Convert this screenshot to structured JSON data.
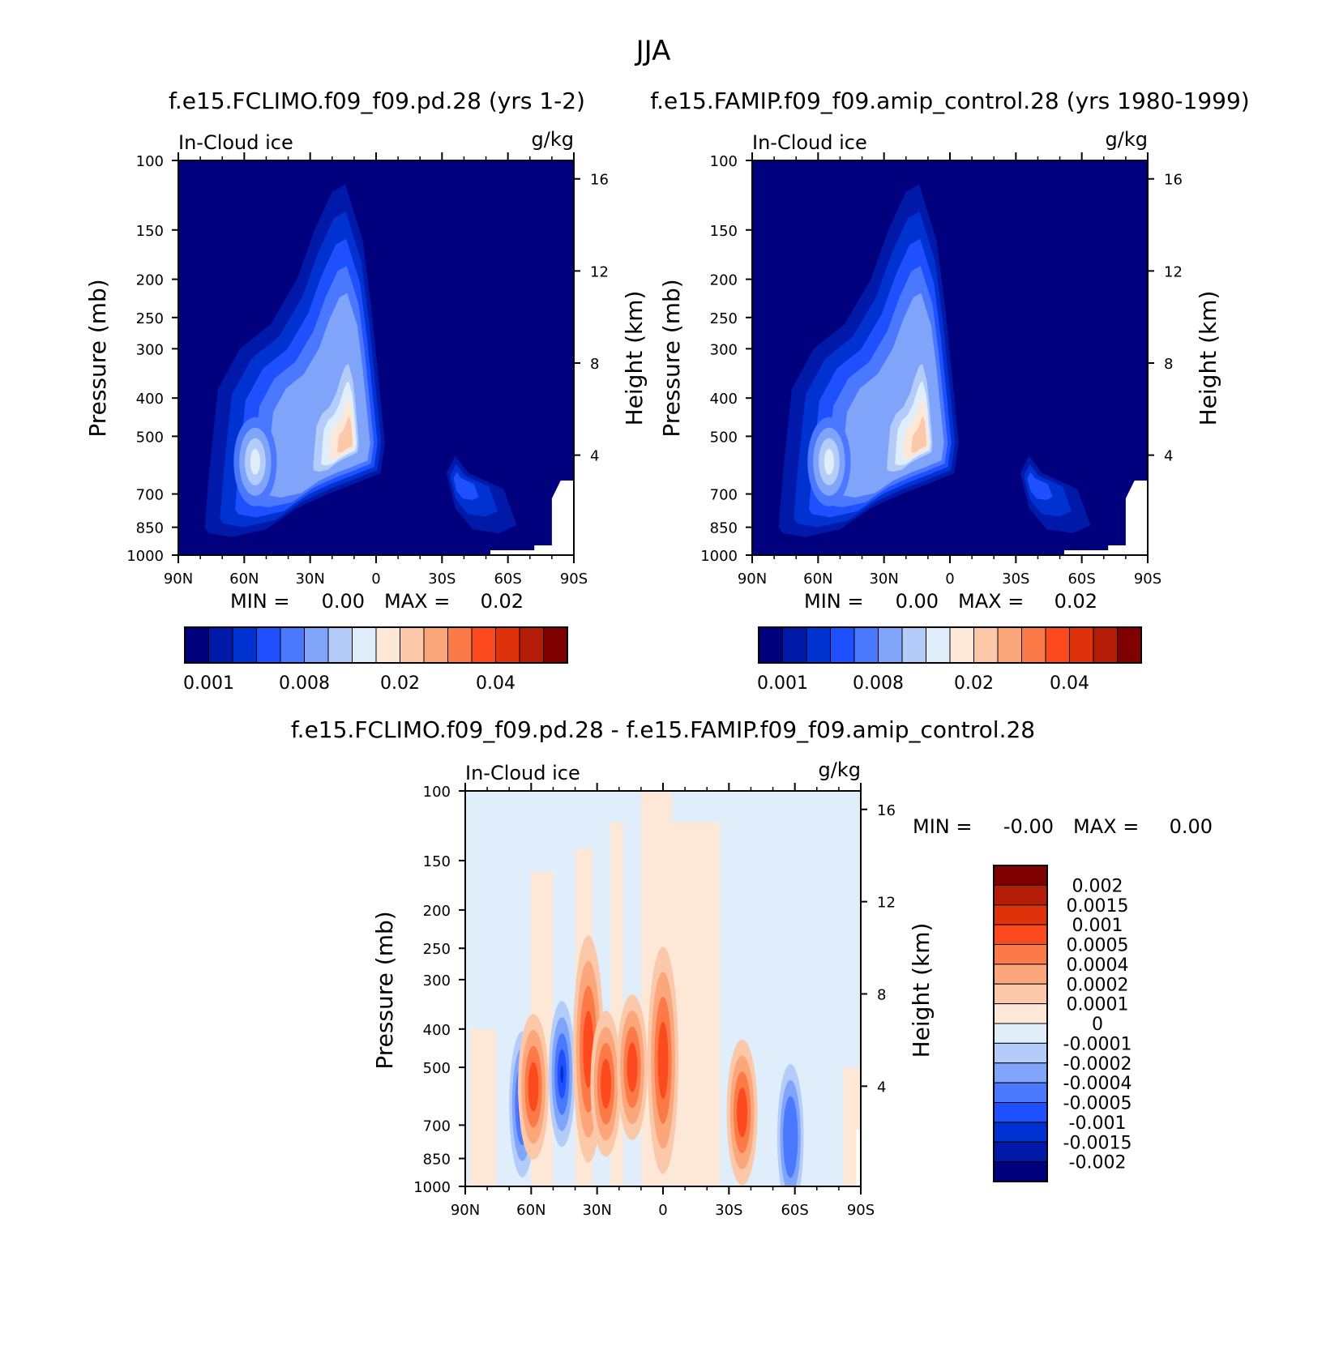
{
  "page": {
    "title": "JJA",
    "case1_title": "f.e15.FCLIMO.f09_f09.pd.28 (yrs 1-2)",
    "case2_title": "f.e15.FAMIP.f09_f09.amip_control.28 (yrs 1980-1999)",
    "diff_title": "f.e15.FCLIMO.f09_f09.pd.28 - f.e15.FAMIP.f09_f09.amip_control.28"
  },
  "chart_data": [
    {
      "type": "heatmap",
      "id": "case1",
      "field": "In-Cloud ice",
      "units": "g/kg",
      "xlabel": "",
      "ylabel": "Pressure (mb)",
      "ylabel_right": "Height (km)",
      "x_ticks": [
        "90N",
        "60N",
        "30N",
        "0",
        "30S",
        "60S",
        "90S"
      ],
      "x_range": [
        90,
        -90
      ],
      "y_ticks": [
        100,
        150,
        200,
        250,
        300,
        400,
        500,
        700,
        850,
        1000
      ],
      "y_range": [
        100,
        1000
      ],
      "height_ticks": [
        16,
        12,
        8,
        4
      ],
      "min_label": "MIN =",
      "min_value": "0.00",
      "max_label": "MAX =",
      "max_value": "0.02",
      "colorbar": {
        "orientation": "horizontal",
        "labels": [
          "0.001",
          "0.008",
          "0.02",
          "0.04"
        ],
        "colors": [
          "#00007f",
          "#0019a8",
          "#0032d2",
          "#1e50ff",
          "#4a78ff",
          "#80a4fa",
          "#b4ccfa",
          "#e0eefc",
          "#fde8d8",
          "#fcc8aa",
          "#fca67c",
          "#fc7a48",
          "#fc4a1e",
          "#e0320a",
          "#b41c08",
          "#800000"
        ]
      },
      "blobs": [
        {
          "lat": 10,
          "p": 520,
          "max_level": 9
        },
        {
          "lat": 55,
          "p": 580,
          "max_level": 7
        },
        {
          "lat": -37,
          "p": 650,
          "max_level": 3
        }
      ]
    },
    {
      "type": "heatmap",
      "id": "case2",
      "field": "In-Cloud ice",
      "units": "g/kg",
      "xlabel": "",
      "ylabel": "Pressure (mb)",
      "ylabel_right": "Height (km)",
      "x_ticks": [
        "90N",
        "60N",
        "30N",
        "0",
        "30S",
        "60S",
        "90S"
      ],
      "x_range": [
        90,
        -90
      ],
      "y_ticks": [
        100,
        150,
        200,
        250,
        300,
        400,
        500,
        700,
        850,
        1000
      ],
      "y_range": [
        100,
        1000
      ],
      "height_ticks": [
        16,
        12,
        8,
        4
      ],
      "min_label": "MIN =",
      "min_value": "0.00",
      "max_label": "MAX =",
      "max_value": "0.02",
      "colorbar": {
        "orientation": "horizontal",
        "labels": [
          "0.001",
          "0.008",
          "0.02",
          "0.04"
        ],
        "colors": [
          "#00007f",
          "#0019a8",
          "#0032d2",
          "#1e50ff",
          "#4a78ff",
          "#80a4fa",
          "#b4ccfa",
          "#e0eefc",
          "#fde8d8",
          "#fcc8aa",
          "#fca67c",
          "#fc7a48",
          "#fc4a1e",
          "#e0320a",
          "#b41c08",
          "#800000"
        ]
      },
      "blobs": [
        {
          "lat": 10,
          "p": 520,
          "max_level": 9
        },
        {
          "lat": 55,
          "p": 580,
          "max_level": 7
        },
        {
          "lat": -37,
          "p": 650,
          "max_level": 3
        }
      ]
    },
    {
      "type": "heatmap",
      "id": "diff",
      "field": "In-Cloud ice",
      "units": "g/kg",
      "xlabel": "",
      "ylabel": "Pressure (mb)",
      "ylabel_right": "Height (km)",
      "x_ticks": [
        "90N",
        "60N",
        "30N",
        "0",
        "30S",
        "60S",
        "90S"
      ],
      "x_range": [
        90,
        -90
      ],
      "y_ticks": [
        100,
        150,
        200,
        250,
        300,
        400,
        500,
        700,
        850,
        1000
      ],
      "y_range": [
        100,
        1000
      ],
      "height_ticks": [
        16,
        12,
        8,
        4
      ],
      "min_label": "MIN =",
      "min_value": "-0.00",
      "max_label": "MAX =",
      "max_value": "0.00",
      "colorbar": {
        "orientation": "vertical",
        "labels": [
          "0.002",
          "0.0015",
          "0.001",
          "0.0005",
          "0.0004",
          "0.0002",
          "0.0001",
          "0",
          "-0.0001",
          "-0.0002",
          "-0.0004",
          "-0.0005",
          "-0.001",
          "-0.0015",
          "-0.002"
        ],
        "colors": [
          "#800000",
          "#b41c08",
          "#e0320a",
          "#fc4a1e",
          "#fc7a48",
          "#fca67c",
          "#fcc8aa",
          "#fde8d8",
          "#e0eefc",
          "#b4ccfa",
          "#80a4fa",
          "#4a78ff",
          "#1e50ff",
          "#0032d2",
          "#0019a8",
          "#00007f"
        ]
      },
      "features": [
        {
          "lat": 64,
          "p": 620,
          "sign": "neg",
          "max_level": 4
        },
        {
          "lat": 59,
          "p": 560,
          "sign": "pos",
          "max_level": 4
        },
        {
          "lat": 46,
          "p": 520,
          "sign": "neg",
          "max_level": 4
        },
        {
          "lat": 34,
          "p": 450,
          "sign": "pos",
          "max_level": 3
        },
        {
          "lat": 26,
          "p": 550,
          "sign": "pos",
          "max_level": 3
        },
        {
          "lat": 14,
          "p": 500,
          "sign": "pos",
          "max_level": 3
        },
        {
          "lat": 0,
          "p": 480,
          "sign": "pos",
          "max_level": 4
        },
        {
          "lat": -36,
          "p": 650,
          "sign": "pos",
          "max_level": 4
        },
        {
          "lat": -58,
          "p": 750,
          "sign": "neg",
          "max_level": 2
        }
      ]
    }
  ]
}
